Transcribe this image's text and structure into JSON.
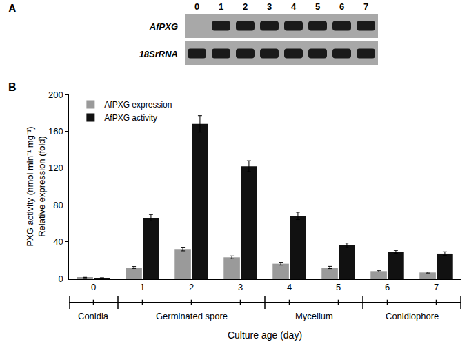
{
  "gel": {
    "panel_label": "A",
    "lanes": [
      "0",
      "1",
      "2",
      "3",
      "4",
      "5",
      "6",
      "7"
    ],
    "rows": [
      {
        "label": "AfPXG",
        "bands": [
          false,
          true,
          true,
          true,
          true,
          true,
          true,
          true
        ]
      },
      {
        "label": "18SrRNA",
        "bands": [
          true,
          true,
          true,
          true,
          true,
          true,
          true,
          true
        ]
      }
    ]
  },
  "chart_data": {
    "panel_label": "B",
    "type": "bar",
    "categories": [
      "0",
      "1",
      "2",
      "3",
      "4",
      "5",
      "6",
      "7"
    ],
    "x_label": "Culture age (day)",
    "y_label": [
      "PXG activity (nmol min⁻¹ mg⁻¹)",
      "Relative expression (fold)"
    ],
    "ylim": [
      0,
      200
    ],
    "yticks": [
      0,
      40,
      80,
      120,
      160,
      200
    ],
    "legend": "upper left",
    "series": [
      {
        "name": "AfPXG expression",
        "color": "#9a9a9a",
        "values": [
          1,
          12,
          32,
          23,
          16,
          12,
          8,
          6.5
        ],
        "errors": [
          0.3,
          1,
          2,
          1.5,
          1.5,
          1.2,
          0.8,
          0.6
        ]
      },
      {
        "name": "AfPXG activity",
        "color": "#111111",
        "values": [
          0.5,
          66,
          168,
          122,
          68,
          36,
          29,
          27
        ],
        "errors": [
          0.3,
          3.5,
          9,
          6,
          4,
          2.5,
          1.5,
          2
        ]
      }
    ],
    "annotations": [
      {
        "text": "Conidia",
        "from": "0",
        "to": "0"
      },
      {
        "text": "Germinated spore",
        "from": "1",
        "to": "3"
      },
      {
        "text": "Mycelium",
        "from": "4",
        "to": "5"
      },
      {
        "text": "Conidiophore",
        "from": "6",
        "to": "7"
      }
    ]
  }
}
